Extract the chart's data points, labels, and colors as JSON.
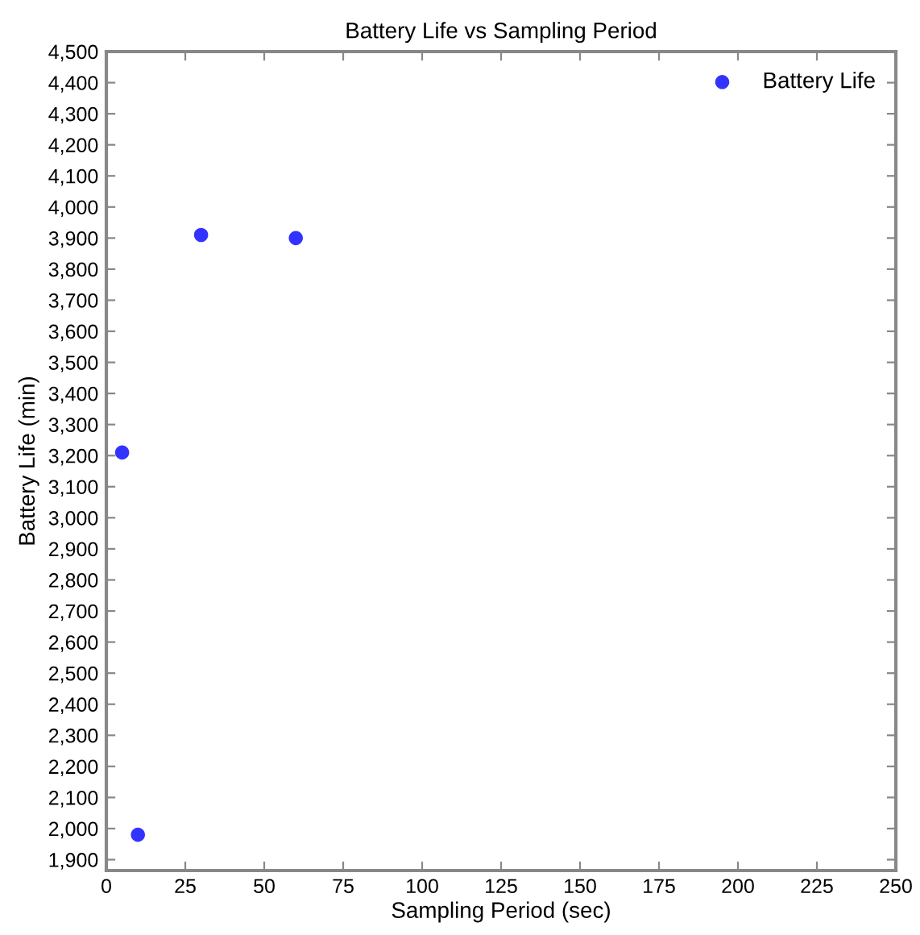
{
  "chart_data": {
    "type": "scatter",
    "title": "Battery Life vs Sampling Period",
    "xlabel": "Sampling Period (sec)",
    "ylabel": "Battery Life (min)",
    "x": [
      5,
      10,
      30,
      60
    ],
    "series": [
      {
        "name": "Battery Life",
        "color": "#3333ff",
        "values": [
          3210,
          1980,
          3910,
          3900
        ]
      }
    ],
    "xlim": [
      0,
      250
    ],
    "xticks": [
      0,
      25,
      50,
      75,
      100,
      125,
      150,
      175,
      200,
      225,
      250
    ],
    "ylim": [
      1865,
      4500
    ],
    "yticks": [
      {
        "value": 1900,
        "label": "1,900"
      },
      {
        "value": 2000,
        "label": "2,000"
      },
      {
        "value": 2100,
        "label": "2,100"
      },
      {
        "value": 2200,
        "label": "2,200"
      },
      {
        "value": 2300,
        "label": "2,300"
      },
      {
        "value": 2400,
        "label": "2,400"
      },
      {
        "value": 2500,
        "label": "2,500"
      },
      {
        "value": 2600,
        "label": "2,600"
      },
      {
        "value": 2700,
        "label": "2,700"
      },
      {
        "value": 2800,
        "label": "2,800"
      },
      {
        "value": 2900,
        "label": "2,900"
      },
      {
        "value": 3000,
        "label": "3,000"
      },
      {
        "value": 3100,
        "label": "3,100"
      },
      {
        "value": 3200,
        "label": "3,200"
      },
      {
        "value": 3300,
        "label": "3,300"
      },
      {
        "value": 3400,
        "label": "3,400"
      },
      {
        "value": 3500,
        "label": "3,500"
      },
      {
        "value": 3600,
        "label": "3,600"
      },
      {
        "value": 3700,
        "label": "3,700"
      },
      {
        "value": 3800,
        "label": "3,800"
      },
      {
        "value": 3900,
        "label": "3,900"
      },
      {
        "value": 4000,
        "label": "4,000"
      },
      {
        "value": 4100,
        "label": "4,100"
      },
      {
        "value": 4200,
        "label": "4,200"
      },
      {
        "value": 4300,
        "label": "4,300"
      },
      {
        "value": 4400,
        "label": "4,400"
      },
      {
        "value": 4500,
        "label": "4,500"
      }
    ],
    "grid": false,
    "legend": "top right",
    "marker": "circle"
  }
}
